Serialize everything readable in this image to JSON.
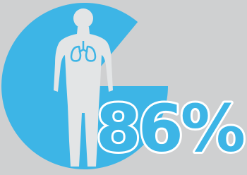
{
  "chart_data": {
    "type": "pie",
    "values": [
      86
    ],
    "value_labels": [
      "86%"
    ],
    "color": "#3db5e6"
  }
}
